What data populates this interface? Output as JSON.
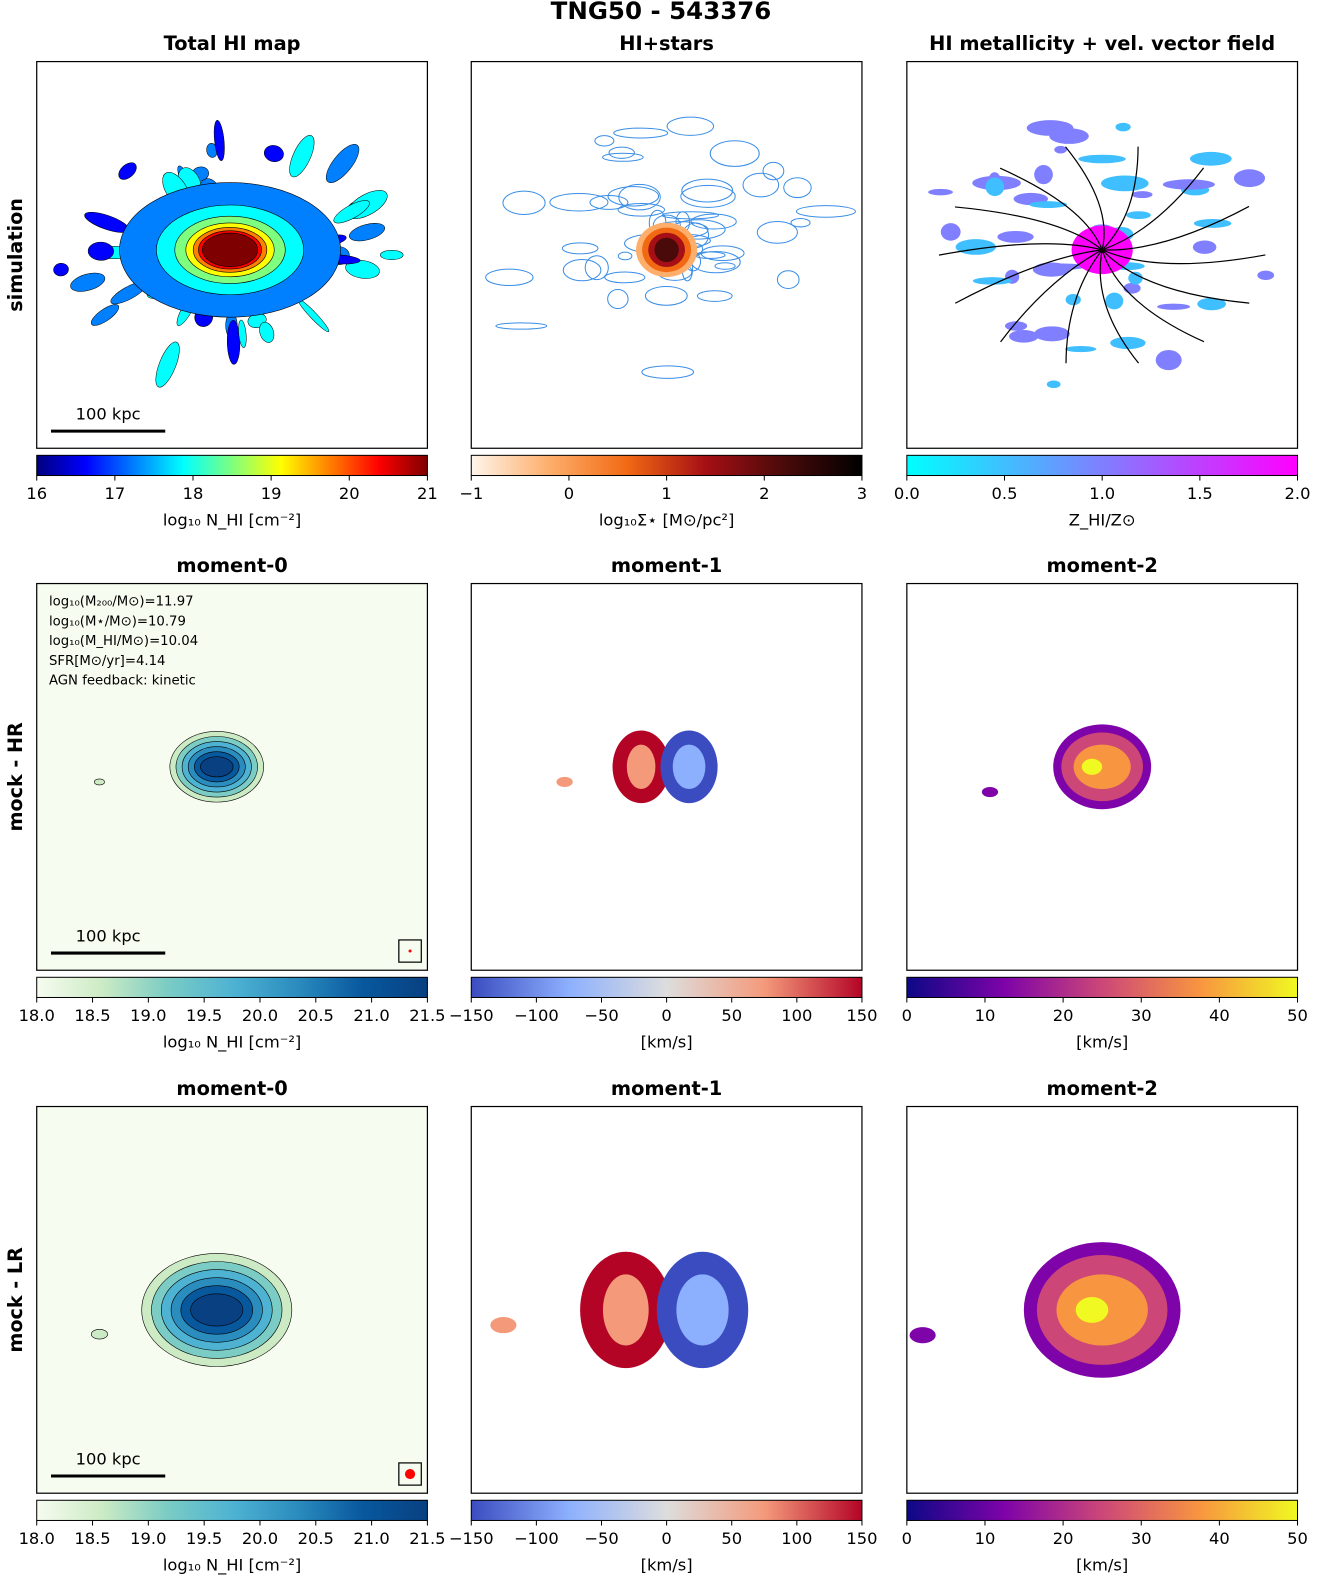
{
  "title": "TNG50 - 543376",
  "row_labels": [
    "simulation",
    "mock - HR",
    "mock - LR"
  ],
  "chart_data": [
    {
      "type": "image",
      "title": "Total HI map",
      "colorbar_label": "log₁₀ N_HI [cm⁻²]",
      "clim": [
        16,
        21
      ],
      "cticks": [
        16,
        17,
        18,
        19,
        20,
        21
      ],
      "colors": [
        "#00007f",
        "#0000ff",
        "#007fff",
        "#00ffff",
        "#7fff7f",
        "#ffff00",
        "#ff7f00",
        "#ff0000",
        "#7f0000"
      ],
      "scalebar": "100 kpc"
    },
    {
      "type": "image",
      "title": "HI+stars",
      "colorbar_label": "log₁₀Σ⋆ [M⊙/pc²]",
      "clim": [
        -1,
        3
      ],
      "cticks": [
        {
          "value": -1,
          "label": "−1"
        },
        0,
        1,
        2,
        3
      ],
      "colors": [
        "#fff5eb",
        "#fdae6b",
        "#f16913",
        "#a50f15",
        "#4a0a0a",
        "#000000"
      ]
    },
    {
      "type": "image",
      "title": "HI metallicity +  vel. vector field",
      "colorbar_label": "Z_HI/Z⊙",
      "clim": [
        0,
        2
      ],
      "cticks": [
        {
          "value": 0,
          "label": "0.0"
        },
        0.5,
        {
          "value": 1,
          "label": "1.0"
        },
        1.5,
        {
          "value": 2,
          "label": "2.0"
        }
      ],
      "colors": [
        "#00ffff",
        "#3fbfff",
        "#7f7fff",
        "#bf3fff",
        "#ff00ff"
      ]
    },
    {
      "type": "image",
      "title": "moment-0",
      "colorbar_label": "log₁₀ N_HI [cm⁻²]",
      "clim": [
        18,
        21.5
      ],
      "cticks": [
        {
          "value": 18,
          "label": "18.0"
        },
        18.5,
        {
          "value": 19,
          "label": "19.0"
        },
        19.5,
        {
          "value": 20,
          "label": "20.0"
        },
        20.5,
        {
          "value": 21,
          "label": "21.0"
        },
        21.5
      ],
      "colors": [
        "#f7fcf0",
        "#ccebc5",
        "#7bccc4",
        "#4eb3d3",
        "#2b8cbe",
        "#08589e",
        "#084081"
      ],
      "scalebar": "100 kpc",
      "annotations": [
        "log₁₀(M₂₀₀/M⊙)=11.97",
        "log₁₀(M⋆/M⊙)=10.79",
        "log₁₀(M_HI/M⊙)=10.04",
        "SFR[M⊙/yr]=4.14",
        "AGN feedback: kinetic"
      ]
    },
    {
      "type": "image",
      "title": "moment-1",
      "colorbar_label": "[km/s]",
      "clim": [
        -150,
        150
      ],
      "cticks": [
        {
          "value": -150,
          "label": "−150"
        },
        {
          "value": -100,
          "label": "−100"
        },
        {
          "value": -50,
          "label": "−50"
        },
        0,
        50,
        100,
        150
      ],
      "colors": [
        "#3b4cc0",
        "#8db0fe",
        "#dddddd",
        "#f49a7b",
        "#b40426"
      ]
    },
    {
      "type": "image",
      "title": "moment-2",
      "colorbar_label": "[km/s]",
      "clim": [
        0,
        50
      ],
      "cticks": [
        0,
        10,
        20,
        30,
        40,
        50
      ],
      "colors": [
        "#0d0887",
        "#7e03a8",
        "#cc4778",
        "#f89540",
        "#f0f921"
      ]
    },
    {
      "type": "image",
      "title": "moment-0",
      "colorbar_label": "log₁₀ N_HI [cm⁻²]",
      "clim": [
        18,
        21.5
      ],
      "cticks": [
        {
          "value": 18,
          "label": "18.0"
        },
        18.5,
        {
          "value": 19,
          "label": "19.0"
        },
        19.5,
        {
          "value": 20,
          "label": "20.0"
        },
        20.5,
        {
          "value": 21,
          "label": "21.0"
        },
        21.5
      ],
      "colors": [
        "#f7fcf0",
        "#ccebc5",
        "#7bccc4",
        "#4eb3d3",
        "#2b8cbe",
        "#08589e",
        "#084081"
      ],
      "scalebar": "100 kpc"
    },
    {
      "type": "image",
      "title": "moment-1",
      "colorbar_label": "[km/s]",
      "clim": [
        -150,
        150
      ],
      "cticks": [
        {
          "value": -150,
          "label": "−150"
        },
        {
          "value": -100,
          "label": "−100"
        },
        {
          "value": -50,
          "label": "−50"
        },
        0,
        50,
        100,
        150
      ],
      "colors": [
        "#3b4cc0",
        "#8db0fe",
        "#dddddd",
        "#f49a7b",
        "#b40426"
      ]
    },
    {
      "type": "image",
      "title": "moment-2",
      "colorbar_label": "[km/s]",
      "clim": [
        0,
        50
      ],
      "cticks": [
        0,
        10,
        20,
        30,
        40,
        50
      ],
      "colors": [
        "#0d0887",
        "#7e03a8",
        "#cc4778",
        "#f89540",
        "#f0f921"
      ]
    }
  ]
}
